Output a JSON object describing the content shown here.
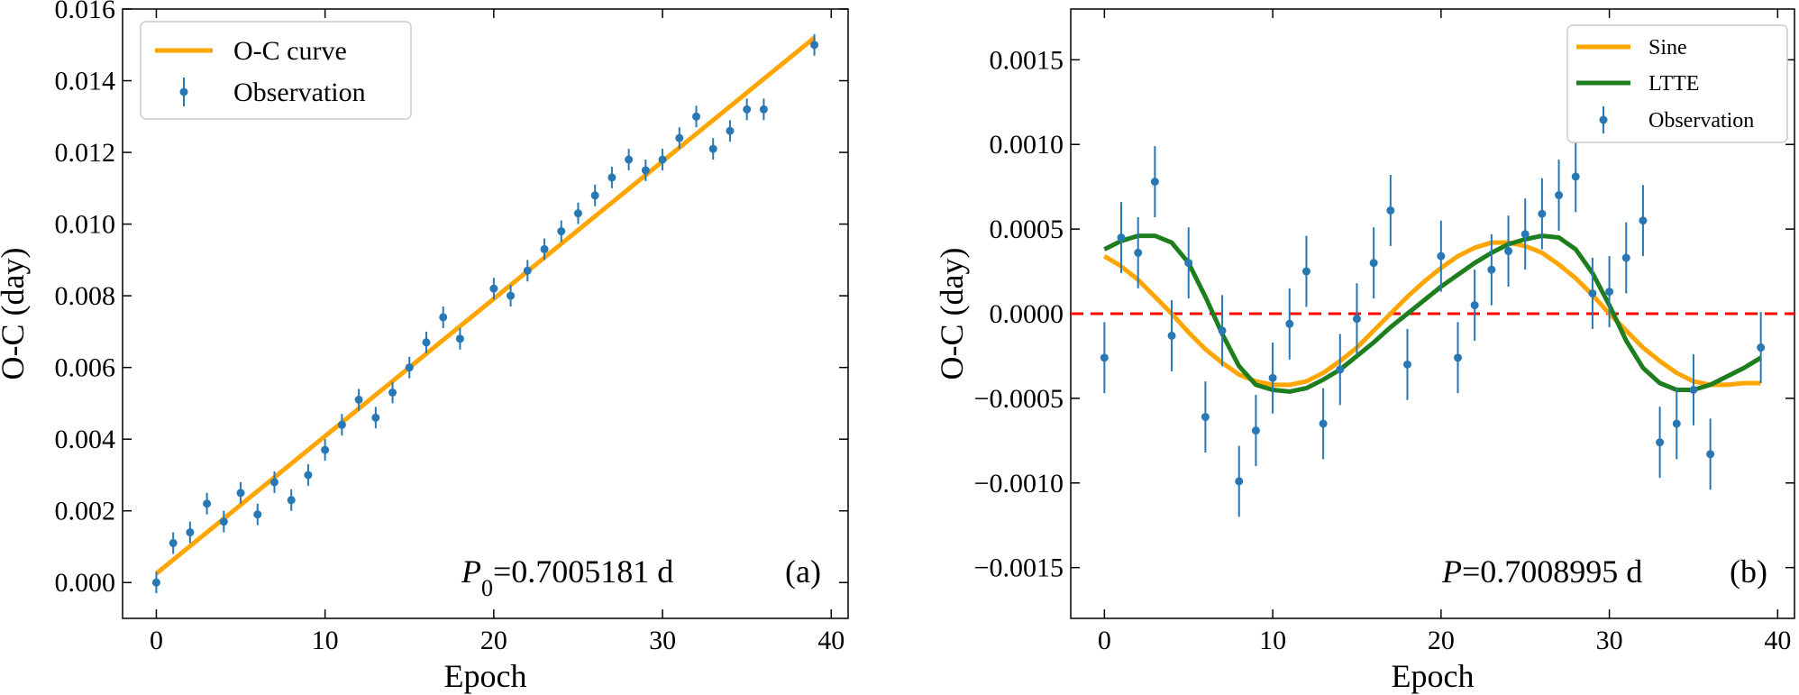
{
  "chart_data": [
    {
      "type": "line",
      "panel_label": "(a)",
      "title": "",
      "xlabel": "Epoch",
      "ylabel": "O-C (day)",
      "xlim": [
        -2,
        41
      ],
      "ylim": [
        -0.001,
        0.016
      ],
      "xticks": [
        0,
        10,
        20,
        30,
        40
      ],
      "yticks": [
        0.0,
        0.002,
        0.004,
        0.006,
        0.008,
        0.01,
        0.012,
        0.014,
        0.016
      ],
      "ytick_labels": [
        "0.000",
        "0.002",
        "0.004",
        "0.006",
        "0.008",
        "0.010",
        "0.012",
        "0.014",
        "0.016"
      ],
      "xtick_labels": [
        "0",
        "10",
        "20",
        "30",
        "40"
      ],
      "legend": {
        "placement": "top-left",
        "entries": [
          "O-C curve",
          "Observation"
        ]
      },
      "annotation": {
        "italic": "P",
        "sub": "0",
        "rest": "=0.7005181 d"
      },
      "colors": {
        "curve": "#FFA500",
        "obs": "#2878B5"
      },
      "series": [
        {
          "name": "O-C curve",
          "kind": "line",
          "x": [
            0,
            39
          ],
          "y": [
            0.00025,
            0.0152
          ]
        },
        {
          "name": "Observation",
          "kind": "errorbar",
          "x": [
            0,
            1,
            2,
            3,
            4,
            5,
            6,
            7,
            8,
            9,
            10,
            11,
            12,
            13,
            14,
            15,
            16,
            17,
            18,
            20,
            21,
            22,
            23,
            24,
            25,
            26,
            27,
            28,
            29,
            30,
            31,
            32,
            33,
            34,
            35,
            36,
            39
          ],
          "y": [
            0.0,
            0.0011,
            0.0014,
            0.0022,
            0.0017,
            0.0025,
            0.0019,
            0.0028,
            0.0023,
            0.003,
            0.0037,
            0.0044,
            0.0051,
            0.0046,
            0.0053,
            0.006,
            0.0067,
            0.0074,
            0.0068,
            0.0082,
            0.008,
            0.0087,
            0.0093,
            0.0098,
            0.0103,
            0.0108,
            0.0113,
            0.0118,
            0.0115,
            0.0118,
            0.0124,
            0.013,
            0.0121,
            0.0126,
            0.0132,
            0.0132,
            0.015
          ],
          "err": 0.0003
        }
      ]
    },
    {
      "type": "line",
      "panel_label": "(b)",
      "title": "",
      "xlabel": "Epoch",
      "ylabel": "O-C (day)",
      "xlim": [
        -2,
        41
      ],
      "ylim": [
        -0.0018,
        0.0018
      ],
      "xticks": [
        0,
        10,
        20,
        30,
        40
      ],
      "yticks": [
        -0.0015,
        -0.001,
        -0.0005,
        0.0,
        0.0005,
        0.001,
        0.0015
      ],
      "ytick_labels": [
        "−0.0015",
        "−0.0010",
        "−0.0005",
        "0.0000",
        "0.0005",
        "0.0010",
        "0.0015"
      ],
      "xtick_labels": [
        "0",
        "10",
        "20",
        "30",
        "40"
      ],
      "legend": {
        "placement": "top-right",
        "entries": [
          "Sine",
          "LTTE",
          "Observation"
        ]
      },
      "annotation": {
        "italic": "P",
        "sub": "",
        "rest": "=0.7008995 d"
      },
      "colors": {
        "sine": "#FFA500",
        "ltte": "#1E7E1E",
        "obs": "#2878B5",
        "zero": "#FF0000"
      },
      "series": [
        {
          "name": "Sine",
          "kind": "line",
          "x": [
            0,
            1,
            2,
            3,
            4,
            5,
            6,
            7,
            8,
            9,
            10,
            11,
            12,
            13,
            14,
            15,
            16,
            17,
            18,
            19,
            20,
            21,
            22,
            23,
            24,
            25,
            26,
            27,
            28,
            29,
            30,
            31,
            32,
            33,
            34,
            35,
            36,
            37,
            38,
            39
          ],
          "y": [
            0.00034,
            0.00028,
            0.0002,
            0.0001,
            0.0,
            -0.00011,
            -0.00021,
            -0.00029,
            -0.00036,
            -0.0004,
            -0.00042,
            -0.00042,
            -0.0004,
            -0.00035,
            -0.00028,
            -0.0002,
            -0.0001,
            0.0,
            0.0001,
            0.00019,
            0.00027,
            0.00034,
            0.00039,
            0.00042,
            0.00042,
            0.0004,
            0.00036,
            0.00029,
            0.00021,
            0.00011,
            0.0,
            -0.0001,
            -0.0002,
            -0.00028,
            -0.00035,
            -0.0004,
            -0.00042,
            -0.00042,
            -0.00041,
            -0.00041
          ]
        },
        {
          "name": "LTTE",
          "kind": "line",
          "x": [
            0,
            1,
            2,
            3,
            4,
            5,
            6,
            7,
            8,
            9,
            10,
            11,
            12,
            13,
            14,
            15,
            16,
            17,
            18,
            19,
            20,
            21,
            22,
            23,
            24,
            25,
            26,
            27,
            28,
            29,
            30,
            31,
            32,
            33,
            34,
            35,
            36,
            37,
            38,
            39
          ],
          "y": [
            0.00038,
            0.00043,
            0.00046,
            0.00046,
            0.00042,
            0.0003,
            0.0001,
            -0.00012,
            -0.00031,
            -0.00042,
            -0.00045,
            -0.00046,
            -0.00044,
            -0.00039,
            -0.00033,
            -0.00025,
            -0.00017,
            -8e-05,
            0.0,
            8e-05,
            0.00016,
            0.00023,
            0.0003,
            0.00036,
            0.00041,
            0.00044,
            0.00046,
            0.00045,
            0.00038,
            0.00024,
            5e-05,
            -0.00016,
            -0.00032,
            -0.00041,
            -0.00045,
            -0.00045,
            -0.00042,
            -0.00037,
            -0.00032,
            -0.00026
          ]
        },
        {
          "name": "Observation",
          "kind": "errorbar",
          "x": [
            0,
            1,
            2,
            3,
            4,
            5,
            6,
            7,
            8,
            9,
            10,
            11,
            12,
            13,
            14,
            15,
            16,
            17,
            18,
            20,
            21,
            22,
            23,
            24,
            25,
            26,
            27,
            28,
            29,
            30,
            31,
            32,
            33,
            34,
            35,
            36,
            39
          ],
          "y": [
            -0.00026,
            0.00045,
            0.00036,
            0.00078,
            -0.00013,
            0.0003,
            -0.00061,
            -0.0001,
            -0.00099,
            -0.00069,
            -0.00038,
            -6e-05,
            0.00025,
            -0.00065,
            -0.00033,
            -3e-05,
            0.0003,
            0.00061,
            -0.0003,
            0.00034,
            -0.00026,
            5e-05,
            0.00026,
            0.00037,
            0.00047,
            0.00059,
            0.0007,
            0.00081,
            0.00012,
            0.00013,
            0.00033,
            0.00055,
            -0.00076,
            -0.00065,
            -0.00045,
            -0.00083,
            -0.0002
          ],
          "err": 0.00021
        }
      ]
    }
  ]
}
